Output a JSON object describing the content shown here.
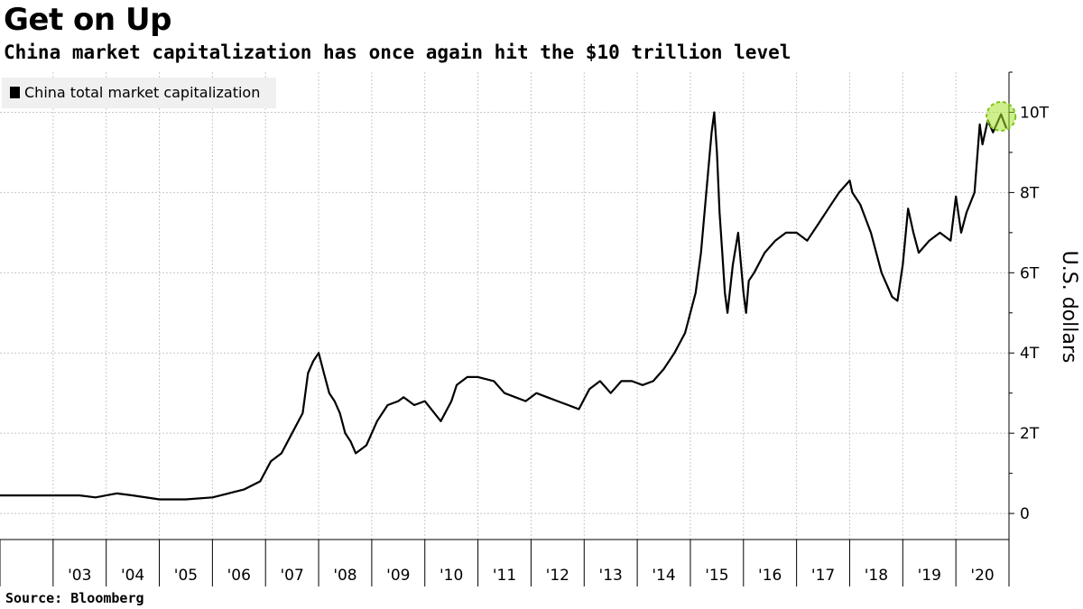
{
  "title": "Get on Up",
  "subtitle": "China market capitalization has once again hit the $10 trillion level",
  "source": "Source:  Bloomberg",
  "colors": {
    "line": "#000000",
    "grid": "#c8c8c8",
    "highlight": "#a6e22e",
    "legend_bg": "#f0f0f0"
  },
  "chart_data": {
    "type": "line",
    "title": "Get on Up",
    "subtitle": "China market capitalization has once again hit the $10 trillion level",
    "ylabel": "U.S. dollars",
    "xlabel": "",
    "ylim": [
      -0.65,
      11
    ],
    "xlim": [
      2002.0,
      2021.0
    ],
    "y_ticks": [
      0,
      2,
      4,
      6,
      8,
      10
    ],
    "y_tick_labels": [
      "0",
      "2T",
      "4T",
      "6T",
      "8T",
      "10T"
    ],
    "x_tick_labels": [
      "'03",
      "'04",
      "'05",
      "'06",
      "'07",
      "'08",
      "'09",
      "'10",
      "'11",
      "'12",
      "'13",
      "'14",
      "'15",
      "'16",
      "'17",
      "'18",
      "'19",
      "'20"
    ],
    "grid": true,
    "legend_position": "top-left",
    "highlight": {
      "x": 2020.85,
      "y": 9.9,
      "note": "circled latest peak"
    },
    "series": [
      {
        "name": "China total market capitalization",
        "unit": "trillion USD",
        "x": [
          2002.0,
          2002.5,
          2003.0,
          2003.5,
          2003.8,
          2004.0,
          2004.2,
          2004.5,
          2005.0,
          2005.5,
          2006.0,
          2006.3,
          2006.6,
          2006.9,
          2007.1,
          2007.3,
          2007.5,
          2007.7,
          2007.8,
          2007.9,
          2008.0,
          2008.1,
          2008.2,
          2008.3,
          2008.4,
          2008.5,
          2008.6,
          2008.7,
          2008.8,
          2008.9,
          2009.0,
          2009.1,
          2009.3,
          2009.5,
          2009.6,
          2009.8,
          2010.0,
          2010.3,
          2010.5,
          2010.6,
          2010.8,
          2011.0,
          2011.3,
          2011.5,
          2011.7,
          2011.9,
          2012.1,
          2012.3,
          2012.5,
          2012.7,
          2012.9,
          2013.1,
          2013.3,
          2013.5,
          2013.7,
          2013.9,
          2014.1,
          2014.3,
          2014.5,
          2014.7,
          2014.9,
          2015.0,
          2015.1,
          2015.2,
          2015.3,
          2015.4,
          2015.45,
          2015.5,
          2015.55,
          2015.6,
          2015.65,
          2015.7,
          2015.8,
          2015.9,
          2016.0,
          2016.05,
          2016.1,
          2016.2,
          2016.4,
          2016.6,
          2016.8,
          2017.0,
          2017.2,
          2017.4,
          2017.6,
          2017.8,
          2018.0,
          2018.05,
          2018.2,
          2018.4,
          2018.6,
          2018.8,
          2018.9,
          2019.0,
          2019.1,
          2019.2,
          2019.3,
          2019.5,
          2019.7,
          2019.9,
          2020.0,
          2020.1,
          2020.2,
          2020.35,
          2020.45,
          2020.5,
          2020.6,
          2020.7,
          2020.85,
          2020.95
        ],
        "y": [
          0.45,
          0.45,
          0.45,
          0.45,
          0.4,
          0.45,
          0.5,
          0.45,
          0.35,
          0.35,
          0.4,
          0.5,
          0.6,
          0.8,
          1.3,
          1.5,
          2.0,
          2.5,
          3.5,
          3.8,
          4.0,
          3.5,
          3.0,
          2.8,
          2.5,
          2.0,
          1.8,
          1.5,
          1.6,
          1.7,
          2.0,
          2.3,
          2.7,
          2.8,
          2.9,
          2.7,
          2.8,
          2.3,
          2.8,
          3.2,
          3.4,
          3.4,
          3.3,
          3.0,
          2.9,
          2.8,
          3.0,
          2.9,
          2.8,
          2.7,
          2.6,
          3.1,
          3.3,
          3.0,
          3.3,
          3.3,
          3.2,
          3.3,
          3.6,
          4.0,
          4.5,
          5.0,
          5.5,
          6.5,
          8.0,
          9.5,
          10.0,
          9.0,
          7.5,
          6.5,
          5.5,
          5.0,
          6.2,
          7.0,
          5.5,
          5.0,
          5.8,
          6.0,
          6.5,
          6.8,
          7.0,
          7.0,
          6.8,
          7.2,
          7.6,
          8.0,
          8.3,
          8.0,
          7.7,
          7.0,
          6.0,
          5.4,
          5.3,
          6.2,
          7.6,
          7.0,
          6.5,
          6.8,
          7.0,
          6.8,
          7.9,
          7.0,
          7.5,
          8.0,
          9.7,
          9.2,
          9.8,
          9.5,
          9.95,
          9.6
        ]
      }
    ]
  }
}
